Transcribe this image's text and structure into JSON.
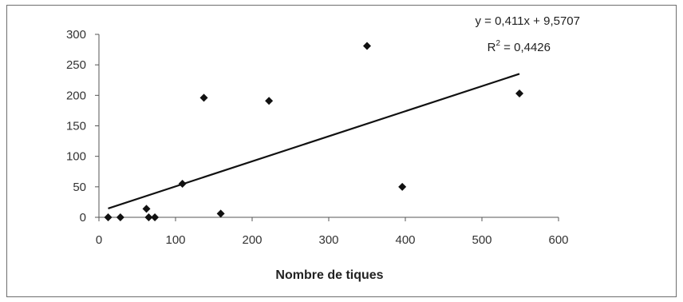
{
  "chart_data": {
    "type": "scatter",
    "title": "",
    "xlabel": "Nombre de tiques",
    "ylabel": "",
    "xlim": [
      0,
      600
    ],
    "ylim": [
      0,
      300
    ],
    "x_ticks": [
      0,
      100,
      200,
      300,
      400,
      500,
      600
    ],
    "y_ticks": [
      0,
      50,
      100,
      150,
      200,
      250,
      300
    ],
    "grid": false,
    "legend": "none",
    "marker": "diamond",
    "marker_color": "#111111",
    "line_color": "#111111",
    "points": [
      {
        "x": 12,
        "y": 0
      },
      {
        "x": 28,
        "y": 0
      },
      {
        "x": 62,
        "y": 14
      },
      {
        "x": 65,
        "y": 0
      },
      {
        "x": 73,
        "y": 0
      },
      {
        "x": 109,
        "y": 55
      },
      {
        "x": 137,
        "y": 196
      },
      {
        "x": 159,
        "y": 6
      },
      {
        "x": 222,
        "y": 191
      },
      {
        "x": 350,
        "y": 281
      },
      {
        "x": 396,
        "y": 50
      },
      {
        "x": 549,
        "y": 203
      }
    ],
    "trendline": {
      "slope": 0.411,
      "intercept": 9.5707,
      "x_range": [
        12,
        549
      ],
      "equation": "y = 0,411x + 9,5707",
      "r2_prefix": "R",
      "r2_sup": "2",
      "r2_value": " = 0,4426"
    }
  }
}
